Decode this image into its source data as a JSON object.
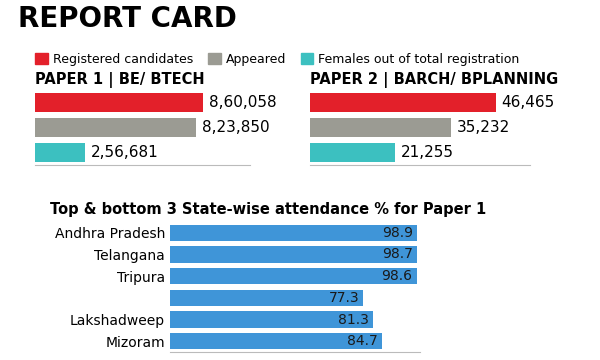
{
  "title": "REPORT CARD",
  "chart_data": [
    {
      "type": "bar",
      "orientation": "horizontal",
      "title": "PAPER 1 | BE/ BTECH",
      "series": [
        {
          "name": "Registered candidates",
          "color": "#e3202a",
          "values": [
            860058
          ],
          "value_labels": [
            "8,60,058"
          ]
        },
        {
          "name": "Appeared",
          "color": "#9b9b93",
          "values": [
            823850
          ],
          "value_labels": [
            "8,23,850"
          ]
        },
        {
          "name": "Females out of total registration",
          "color": "#3cc0c0",
          "values": [
            256681
          ],
          "value_labels": [
            "2,56,681"
          ]
        }
      ],
      "xlim": [
        0,
        1100000
      ],
      "xticks": [],
      "tick_labels": false,
      "data_labels": true,
      "legend": "upper left"
    },
    {
      "type": "bar",
      "orientation": "horizontal",
      "title": "PAPER 2 | BARCH/ BPLANNING",
      "series": [
        {
          "name": "Registered candidates",
          "color": "#e3202a",
          "values": [
            46465
          ],
          "value_labels": [
            "46,465"
          ]
        },
        {
          "name": "Appeared",
          "color": "#9b9b93",
          "values": [
            35232
          ],
          "value_labels": [
            "35,232"
          ]
        },
        {
          "name": "Females out of total registration",
          "color": "#3cc0c0",
          "values": [
            21255
          ],
          "value_labels": [
            "21,255"
          ]
        }
      ],
      "xlim": [
        0,
        55000
      ],
      "xticks": [],
      "tick_labels": false,
      "data_labels": true
    },
    {
      "type": "bar",
      "orientation": "horizontal",
      "title": "Top & bottom 3 State-wise attendance % for Paper 1",
      "categories": [
        "Andhra Pradesh",
        "Telangana",
        "Tripura",
        null,
        "Lakshadweep",
        "Mizoram"
      ],
      "values": [
        98.9,
        98.7,
        98.6,
        77.3,
        81.3,
        84.7
      ],
      "color": "#3f95d8",
      "xlim": [
        0,
        100
      ],
      "xticks": [],
      "tick_labels": "y",
      "data_labels": true
    }
  ]
}
